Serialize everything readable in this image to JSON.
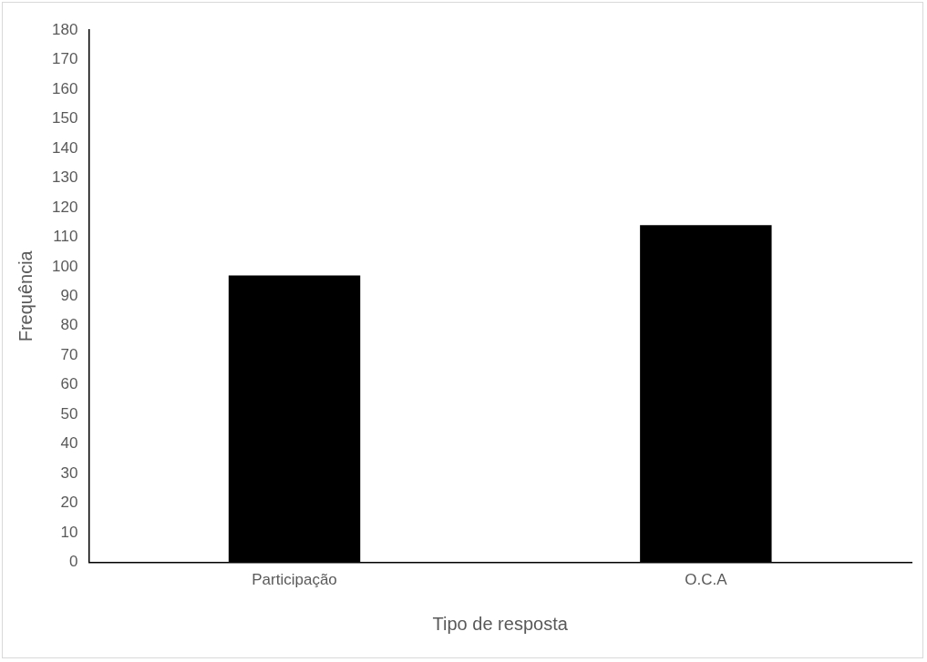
{
  "chart_data": {
    "type": "bar",
    "xlabel": "Tipo de resposta",
    "ylabel": "Frequência",
    "categories": [
      "Participação",
      "O.C.A"
    ],
    "values": [
      97,
      114
    ],
    "color": "#000000",
    "ylim": [
      0,
      180
    ],
    "yticks": [
      0,
      10,
      20,
      30,
      40,
      50,
      60,
      70,
      80,
      90,
      100,
      110,
      120,
      130,
      140,
      150,
      160,
      170,
      180
    ],
    "grid": false,
    "legend": false
  }
}
